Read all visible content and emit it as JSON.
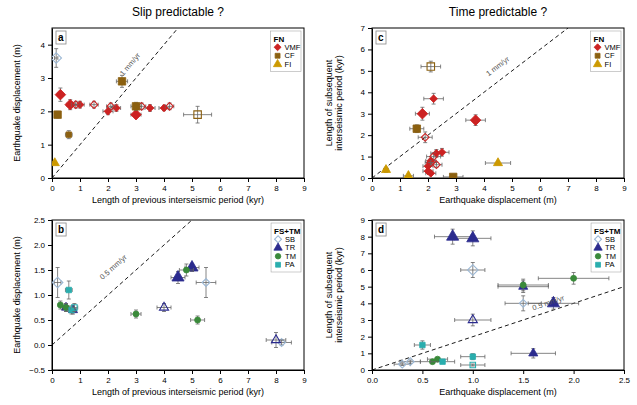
{
  "chart_data": [
    {
      "type": "scatter",
      "title": "Slip predictable ?",
      "subtitle": "a",
      "xlabel": "Length of previous interseismic period (kyr)",
      "ylabel": "Earthquake displacement (m)",
      "xlim": [
        0,
        9
      ],
      "ylim": [
        0,
        4.5
      ],
      "xticks": [
        0,
        1,
        2,
        3,
        4,
        5,
        6,
        7,
        8,
        9
      ],
      "yticks": [
        0,
        1,
        2,
        3,
        4
      ],
      "grid": false,
      "legend": "upper right",
      "legend_title": "FN",
      "series": [
        {
          "type": "line",
          "line_style": "dashed",
          "color": "black",
          "x": [
            0,
            4.5
          ],
          "values": [
            0,
            4.5
          ]
        },
        {
          "name": "VMF",
          "color": "#CC2222",
          "marker": "diamond",
          "x": [
            0.3,
            0.65,
            1.0,
            2.0,
            2.3,
            3.0,
            3.5,
            4.0
          ],
          "values": [
            2.5,
            2.2,
            2.2,
            2.0,
            2.1,
            1.9,
            2.1,
            2.1
          ],
          "x_error": [
            0.1,
            0.12,
            0.15,
            0.18,
            0.15,
            0.18,
            0.18,
            0.18
          ],
          "y_error": [
            0.2,
            0.15,
            0.1,
            0.1,
            0.1,
            0.08,
            0.1,
            0.08
          ],
          "major": [
            true,
            true,
            false,
            false,
            false,
            true,
            false,
            false
          ]
        },
        {
          "name": "VMF",
          "color": "#CC2222",
          "marker": "diamond-open",
          "x": [
            0.85,
            1.5,
            2.1,
            3.2,
            4.2
          ],
          "values": [
            2.2,
            2.2,
            2.15,
            2.15,
            2.15
          ],
          "x_error": [
            0.15,
            0.15,
            0.15,
            0.15,
            0.15
          ],
          "y_error": [
            0.1,
            0.1,
            0.1,
            0.1,
            0.1
          ],
          "major": [
            false,
            false,
            false,
            false,
            false
          ]
        },
        {
          "name": "CF",
          "color": "#8B6010",
          "marker": "square",
          "x": [
            0.2,
            0.6,
            2.5,
            3.0
          ],
          "values": [
            1.9,
            1.3,
            2.9,
            2.15
          ],
          "x_error": [
            0.08,
            0.12,
            0.2,
            0.18
          ],
          "y_error": [
            0.1,
            0.12,
            0.18,
            0.12
          ],
          "major": [
            true,
            false,
            true,
            true
          ]
        },
        {
          "name": "CF",
          "color": "#8B6010",
          "marker": "square-open",
          "x": [
            5.2
          ],
          "values": [
            1.9
          ],
          "x_error": [
            0.5
          ],
          "y_error": [
            0.25
          ],
          "major": [
            true
          ]
        },
        {
          "name": "FI",
          "color": "#CC9900",
          "marker": "triangle",
          "x": [
            0.1
          ],
          "values": [
            0.45
          ],
          "x_error": [
            0.04
          ],
          "y_error": [
            0.04
          ],
          "major": [
            false
          ]
        },
        {
          "color": "#9BB7D4",
          "marker": "diamond-open",
          "x": [
            0.15
          ],
          "values": [
            3.6
          ],
          "x_error": [
            0.06
          ],
          "y_error": [
            0.28
          ],
          "major": [
            true
          ]
        }
      ],
      "annotations": [
        {
          "text": "1 mm/yr",
          "x": 2.8,
          "y": 3.4
        }
      ]
    },
    {
      "type": "scatter",
      "title": "Time predictable ?",
      "subtitle": "c",
      "xlabel": "Earthquake displacement (m)",
      "ylabel": "Length of subsequent interseismic period (kyr)",
      "xlim": [
        0,
        9
      ],
      "ylim": [
        0,
        7
      ],
      "xticks": [
        0,
        1,
        2,
        3,
        4,
        5,
        6,
        7,
        8,
        9
      ],
      "yticks": [
        0,
        1,
        2,
        3,
        4,
        5,
        6,
        7
      ],
      "grid": false,
      "legend": "upper right",
      "legend_title": "FN",
      "series": [
        {
          "type": "line",
          "line_style": "dashed",
          "color": "black",
          "x": [
            0,
            7.0
          ],
          "values": [
            0,
            7.0
          ]
        },
        {
          "name": "VMF",
          "color": "#CC2222",
          "marker": "diamond",
          "x": [
            1.8,
            2.2,
            2.5,
            2.3,
            2.1,
            2.0,
            2.0,
            2.1,
            3.7
          ],
          "values": [
            3.0,
            3.7,
            1.2,
            1.15,
            0.8,
            0.55,
            0.32,
            0.22,
            2.7
          ],
          "x_error": [
            0.25,
            0.35,
            0.25,
            0.2,
            0.18,
            0.18,
            0.18,
            0.18,
            0.35
          ],
          "y_error": [
            0.3,
            0.25,
            0.18,
            0.18,
            0.12,
            0.15,
            0.08,
            0.08,
            0.25
          ],
          "major": [
            true,
            false,
            false,
            false,
            false,
            false,
            false,
            false,
            true
          ]
        },
        {
          "name": "VMF",
          "color": "#CC2222",
          "marker": "diamond-open",
          "x": [
            1.9,
            2.2,
            2.1,
            2.3
          ],
          "values": [
            1.9,
            1.0,
            0.72,
            0.62
          ],
          "x_error": [
            0.25,
            0.25,
            0.2,
            0.2
          ],
          "y_error": [
            0.25,
            0.18,
            0.12,
            0.12
          ],
          "major": [
            false,
            false,
            false,
            false
          ]
        },
        {
          "name": "CF",
          "color": "#8B6010",
          "marker": "square",
          "x": [
            1.6,
            2.9
          ],
          "values": [
            2.3,
            0.05
          ],
          "x_error": [
            0.25,
            0.35
          ],
          "y_error": [
            0.18,
            0.04
          ],
          "major": [
            true,
            true
          ]
        },
        {
          "name": "CF",
          "color": "#8B6010",
          "marker": "square-open",
          "x": [
            2.1
          ],
          "values": [
            5.2
          ],
          "x_error": [
            0.35
          ],
          "y_error": [
            0.25
          ],
          "major": [
            true
          ]
        },
        {
          "name": "FI",
          "color": "#CC9900",
          "marker": "triangle",
          "x": [
            0.5,
            1.3,
            4.5
          ],
          "values": [
            0.38,
            0.1,
            0.7
          ],
          "x_error": [
            0.08,
            0.18,
            0.45
          ],
          "y_error": [
            0.12,
            0.04,
            0.08
          ],
          "major": [
            false,
            false,
            false
          ]
        }
      ],
      "annotations": [
        {
          "text": "1 mm/yr",
          "x": 4.5,
          "y": 5.2
        }
      ]
    },
    {
      "type": "scatter",
      "subtitle": "b",
      "xlabel": "Length of previous interseismic period (kyr)",
      "ylabel": "Earthquake displacement (m)",
      "xlim": [
        0,
        9
      ],
      "ylim": [
        -0.5,
        2.5
      ],
      "xticks": [
        0,
        1,
        2,
        3,
        4,
        5,
        6,
        7,
        8,
        9
      ],
      "yticks": [
        {
          "value": -0.5,
          "label": "−0.5"
        },
        {
          "value": 0,
          "label": "0.0"
        },
        0.5,
        {
          "value": 1.0,
          "label": "1.0"
        },
        1.5,
        {
          "value": 2.0,
          "label": "2.0"
        },
        2.5
      ],
      "grid": false,
      "legend": "upper right",
      "legend_title": "FS+TM",
      "series": [
        {
          "type": "line",
          "line_style": "dashed",
          "color": "black",
          "x": [
            0,
            5.0
          ],
          "values": [
            0,
            2.5
          ]
        },
        {
          "name": "SB",
          "color": "#9BB7D4",
          "marker": "diamond-open",
          "x": [
            0.2,
            5.5,
            8.2
          ],
          "values": [
            1.25,
            1.25,
            0.05
          ],
          "x_error": [
            0.12,
            0.35,
            0.35
          ],
          "y_error": [
            0.3,
            0.3,
            0.05
          ],
          "major": [
            true,
            false,
            false
          ]
        },
        {
          "name": "TR",
          "color": "#2B2B8E",
          "marker": "triangle",
          "x": [
            0.5,
            0.75,
            4.5,
            5.0
          ],
          "values": [
            0.75,
            0.7,
            1.35,
            1.55
          ],
          "x_error": [
            0.12,
            0.12,
            0.25,
            0.25
          ],
          "y_error": [
            0.08,
            0.08,
            0.12,
            0.08
          ],
          "major": [
            false,
            false,
            true,
            true
          ]
        },
        {
          "name": "TR",
          "color": "#2B2B8E",
          "marker": "triangle-open",
          "x": [
            4.0,
            8.0
          ],
          "values": [
            0.75,
            0.1
          ],
          "x_error": [
            0.25,
            0.35
          ],
          "y_error": [
            0.08,
            0.15
          ],
          "major": [
            false,
            false
          ]
        },
        {
          "name": "TM",
          "color": "#3A8A3A",
          "marker": "circle",
          "x": [
            0.3,
            0.5,
            3.0,
            4.8,
            5.2
          ],
          "values": [
            0.8,
            0.75,
            0.62,
            1.5,
            0.5
          ],
          "x_error": [
            0.08,
            0.08,
            0.18,
            0.25,
            0.25
          ],
          "y_error": [
            0.08,
            0.08,
            0.08,
            0.12,
            0.08
          ],
          "major": [
            false,
            false,
            false,
            false,
            false
          ]
        },
        {
          "name": "PA",
          "color": "#2AADAD",
          "marker": "square",
          "x": [
            0.6,
            0.7
          ],
          "values": [
            1.1,
            0.7
          ],
          "x_error": [
            0.12,
            0.12
          ],
          "y_error": [
            0.18,
            0.08
          ],
          "major": [
            false,
            false
          ]
        },
        {
          "name": "PA",
          "color": "#2AADAD",
          "marker": "square-open",
          "x": [
            0.8
          ],
          "values": [
            0.75
          ],
          "x_error": [
            0.12
          ],
          "y_error": [
            0.08
          ],
          "major": [
            false
          ]
        }
      ],
      "annotations": [
        {
          "text": "0.5 mm/yr",
          "x": 2.2,
          "y": 1.55
        }
      ]
    },
    {
      "type": "scatter",
      "subtitle": "d",
      "xlabel": "Earthquake displacement (m)",
      "ylabel": "Length of subsequent interseismic period (kyr)",
      "xlim": [
        0,
        2.5
      ],
      "ylim": [
        0,
        9
      ],
      "xticks": [
        {
          "value": 0,
          "label": "0.0"
        },
        0.5,
        {
          "value": 1.0,
          "label": "1.0"
        },
        1.5,
        {
          "value": 2.0,
          "label": "2.0"
        },
        2.5
      ],
      "yticks": [
        0,
        1,
        2,
        3,
        4,
        5,
        6,
        7,
        8,
        9
      ],
      "grid": false,
      "legend": "upper right",
      "legend_title": "FS+TM",
      "series": [
        {
          "type": "line",
          "line_style": "dashed",
          "color": "black",
          "x": [
            0,
            2.5
          ],
          "values": [
            0,
            5.0
          ]
        },
        {
          "name": "SB",
          "color": "#9BB7D4",
          "marker": "diamond-open",
          "x": [
            0.3,
            0.38,
            1.0,
            1.5
          ],
          "values": [
            0.35,
            0.5,
            6.0,
            4.0
          ],
          "x_error": [
            0.08,
            0.1,
            0.12,
            0.18
          ],
          "y_error": [
            0.08,
            0.1,
            0.45,
            0.45
          ],
          "major": [
            false,
            false,
            true,
            false
          ]
        },
        {
          "name": "TR",
          "color": "#2B2B8E",
          "marker": "triangle",
          "x": [
            0.8,
            1.0,
            1.5,
            1.8,
            1.6
          ],
          "values": [
            8.0,
            7.9,
            5.0,
            4.0,
            1.0
          ],
          "x_error": [
            0.18,
            0.18,
            0.25,
            0.25,
            0.22
          ],
          "y_error": [
            0.45,
            0.45,
            0.35,
            0.35,
            0.28
          ],
          "major": [
            true,
            true,
            false,
            true,
            false
          ]
        },
        {
          "name": "TR",
          "color": "#2B2B8E",
          "marker": "triangle-open",
          "x": [
            1.0
          ],
          "values": [
            3.0
          ],
          "x_error": [
            0.18
          ],
          "y_error": [
            0.35
          ],
          "major": [
            false
          ]
        },
        {
          "name": "TM",
          "color": "#3A8A3A",
          "marker": "circle",
          "x": [
            0.6,
            1.5,
            2.0,
            0.65
          ],
          "values": [
            0.5,
            5.1,
            5.5,
            0.65
          ],
          "x_error": [
            0.12,
            0.25,
            0.35,
            0.1
          ],
          "y_error": [
            0.08,
            0.35,
            0.35,
            0.1
          ],
          "major": [
            false,
            false,
            false,
            false
          ]
        },
        {
          "name": "PA",
          "color": "#2AADAD",
          "marker": "square",
          "x": [
            0.5,
            0.7,
            1.0
          ],
          "values": [
            1.5,
            0.5,
            0.8
          ],
          "x_error": [
            0.08,
            0.12,
            0.12
          ],
          "y_error": [
            0.25,
            0.08,
            0.18
          ],
          "major": [
            false,
            false,
            false
          ]
        },
        {
          "name": "PA",
          "color": "#2AADAD",
          "marker": "square-open",
          "x": [
            1.0
          ],
          "values": [
            0.3
          ],
          "x_error": [
            0.12
          ],
          "y_error": [
            0.06
          ],
          "major": [
            false
          ]
        }
      ],
      "annotations": [
        {
          "text": "0.5 mm/yr",
          "x": 1.75,
          "y": 4.0
        }
      ]
    }
  ]
}
